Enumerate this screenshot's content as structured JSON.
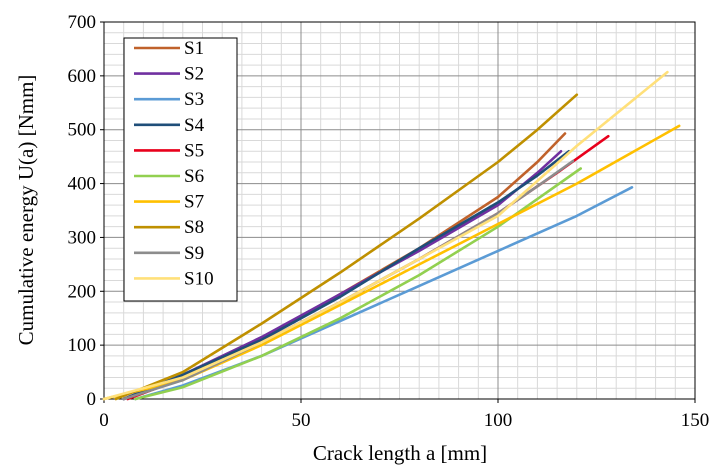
{
  "chart_data": {
    "type": "line",
    "xlabel": "Crack length a [mm]",
    "ylabel": "Cumulative energy U(a) [Nmm]",
    "xlim": [
      0,
      150
    ],
    "ylim": [
      0,
      700
    ],
    "xticks": [
      "0",
      "50",
      "100",
      "150"
    ],
    "yticks": [
      "0",
      "100",
      "200",
      "300",
      "400",
      "500",
      "600",
      "700"
    ],
    "grid": true,
    "legend_position": "top-left",
    "series": [
      {
        "name": "S1",
        "color": "#C0622B",
        "x": [
          5,
          20,
          40,
          60,
          80,
          100,
          110,
          117
        ],
        "y": [
          0,
          40,
          110,
          195,
          280,
          375,
          440,
          493
        ]
      },
      {
        "name": "S2",
        "color": "#7030A0",
        "x": [
          5,
          20,
          40,
          60,
          80,
          100,
          110,
          116
        ],
        "y": [
          0,
          45,
          115,
          195,
          275,
          360,
          420,
          460
        ]
      },
      {
        "name": "S3",
        "color": "#5B9BD5",
        "x": [
          8,
          20,
          40,
          60,
          80,
          100,
          120,
          134
        ],
        "y": [
          0,
          25,
          80,
          145,
          210,
          275,
          340,
          393
        ]
      },
      {
        "name": "S4",
        "color": "#1F4E79",
        "x": [
          5,
          20,
          40,
          60,
          80,
          100,
          110,
          118
        ],
        "y": [
          0,
          45,
          110,
          190,
          280,
          365,
          415,
          460
        ]
      },
      {
        "name": "S5",
        "color": "#E8001C",
        "x": [
          6,
          20,
          40,
          60,
          80,
          100,
          115,
          128
        ],
        "y": [
          0,
          38,
          105,
          180,
          260,
          345,
          420,
          488
        ]
      },
      {
        "name": "S6",
        "color": "#92D050",
        "x": [
          8,
          20,
          40,
          60,
          80,
          100,
          121
        ],
        "y": [
          0,
          22,
          80,
          150,
          230,
          320,
          428
        ]
      },
      {
        "name": "S7",
        "color": "#FFC000",
        "x": [
          0,
          20,
          40,
          60,
          80,
          100,
          120,
          146
        ],
        "y": [
          0,
          35,
          100,
          175,
          250,
          325,
          400,
          507
        ]
      },
      {
        "name": "S8",
        "color": "#BF9000",
        "x": [
          3,
          20,
          40,
          60,
          80,
          100,
          110,
          120
        ],
        "y": [
          0,
          50,
          140,
          235,
          335,
          440,
          500,
          565
        ]
      },
      {
        "name": "S9",
        "color": "#8C8C8C",
        "x": [
          5,
          20,
          40,
          60,
          80,
          100,
          110,
          119
        ],
        "y": [
          0,
          35,
          105,
          180,
          260,
          345,
          395,
          442
        ]
      },
      {
        "name": "S10",
        "color": "#FFE07A",
        "x": [
          0,
          20,
          40,
          60,
          80,
          100,
          120,
          143
        ],
        "y": [
          0,
          40,
          105,
          180,
          260,
          340,
          470,
          607
        ]
      }
    ]
  }
}
